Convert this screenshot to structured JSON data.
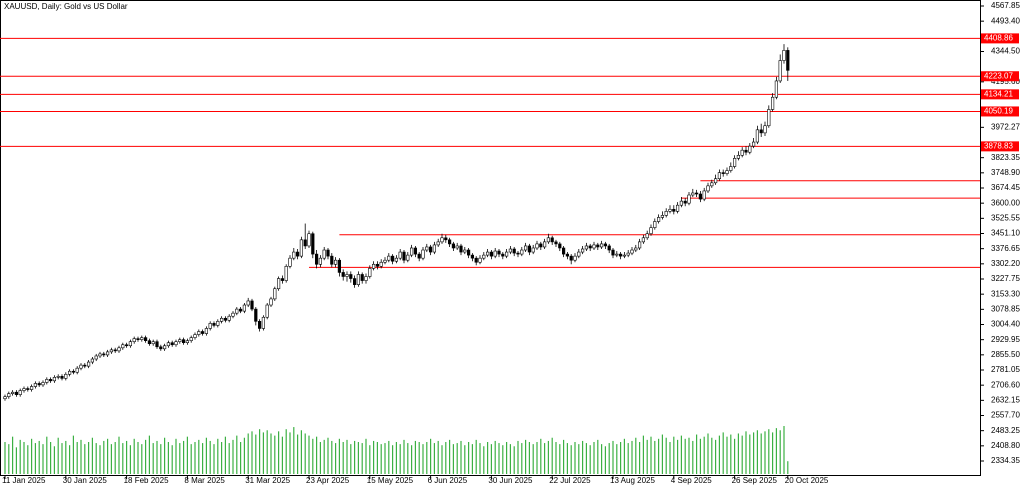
{
  "chart_data": {
    "type": "candlestick",
    "title": "XAUUSD, Daily:  Gold vs US Dollar",
    "ylim": [
      2334.35,
      4567.85
    ],
    "yticks": [
      4567.85,
      {
        "value": 4493.4,
        "label": "4493.40"
      },
      {
        "value": 4344.5,
        "label": "4344.50"
      },
      {
        "value": 4195.6,
        "label": "4195.60"
      },
      3972.27,
      3823.35,
      {
        "value": 3748.9,
        "label": "3748.90"
      },
      3674.45,
      {
        "value": 3600,
        "label": "3600.00"
      },
      3525.55,
      {
        "value": 3451.1,
        "label": "3451.10"
      },
      3376.65,
      {
        "value": 3302.2,
        "label": "3302.20"
      },
      3227.75,
      {
        "value": 3153.3,
        "label": "3153.30"
      },
      3078.85,
      {
        "value": 3004.4,
        "label": "3004.40"
      },
      2929.95,
      {
        "value": 2855.5,
        "label": "2855.50"
      },
      2781.05,
      {
        "value": 2706.6,
        "label": "2706.60"
      },
      2632.15,
      {
        "value": 2557.7,
        "label": "2557.70"
      },
      2483.25,
      {
        "value": 2408.8,
        "label": "2408.80"
      },
      2334.35
    ],
    "xticks": [
      {
        "value": 0,
        "label": "11 Jan 2025"
      },
      {
        "value": 16,
        "label": "30 Jan 2025"
      },
      {
        "value": 32,
        "label": "18 Feb 2025"
      },
      {
        "value": 48,
        "label": "8 Mar 2025"
      },
      {
        "value": 64,
        "label": "31 Mar 2025"
      },
      {
        "value": 80,
        "label": "23 Apr 2025"
      },
      {
        "value": 96,
        "label": "15 May 2025"
      },
      {
        "value": 112,
        "label": "6 Jun 2025"
      },
      {
        "value": 128,
        "label": "30 Jun 2025"
      },
      {
        "value": 144,
        "label": "22 Jul 2025"
      },
      {
        "value": 160,
        "label": "13 Aug 2025"
      },
      {
        "value": 176,
        "label": "4 Sep 2025"
      },
      {
        "value": 192,
        "label": "26 Sep 2025"
      },
      {
        "value": 206,
        "label": "20 Oct 2025"
      }
    ],
    "levels": [
      4408.86,
      4223.07,
      4134.21,
      4050.19,
      3878.83
    ],
    "level_color": "#ff0000",
    "segments": [
      {
        "value": 3445,
        "from": 88
      },
      {
        "value": 3285,
        "from": 80
      },
      {
        "value": 3710,
        "from": 183
      },
      {
        "value": 3625,
        "from": 178
      }
    ],
    "volume_color": "#3cb043",
    "open": [
      2640,
      2650,
      2665,
      2672,
      2660,
      2680,
      2690,
      2685,
      2700,
      2715,
      2708,
      2720,
      2735,
      2728,
      2745,
      2750,
      2740,
      2760,
      2775,
      2770,
      2790,
      2805,
      2800,
      2820,
      2835,
      2850,
      2860,
      2855,
      2870,
      2880,
      2875,
      2890,
      2905,
      2900,
      2920,
      2935,
      2930,
      2940,
      2925,
      2910,
      2920,
      2895,
      2885,
      2900,
      2915,
      2905,
      2920,
      2930,
      2915,
      2925,
      2940,
      2955,
      2970,
      2960,
      2985,
      3010,
      3000,
      3020,
      3035,
      3025,
      3045,
      3060,
      3080,
      3070,
      3100,
      3120,
      3080,
      3020,
      2985,
      3040,
      3100,
      3130,
      3180,
      3230,
      3220,
      3290,
      3330,
      3360,
      3340,
      3420,
      3390,
      3450,
      3350,
      3300,
      3330,
      3370,
      3340,
      3300,
      3320,
      3260,
      3240,
      3250,
      3230,
      3200,
      3250,
      3220,
      3240,
      3280,
      3300,
      3290,
      3310,
      3320,
      3340,
      3315,
      3330,
      3360,
      3320,
      3345,
      3380,
      3350,
      3330,
      3370,
      3385,
      3360,
      3395,
      3410,
      3430,
      3420,
      3400,
      3380,
      3390,
      3360,
      3370,
      3345,
      3330,
      3310,
      3330,
      3345,
      3360,
      3340,
      3365,
      3350,
      3340,
      3360,
      3375,
      3355,
      3350,
      3370,
      3390,
      3360,
      3380,
      3400,
      3385,
      3410,
      3430,
      3410,
      3400,
      3380,
      3350,
      3340,
      3320,
      3340,
      3360,
      3375,
      3390,
      3380,
      3395,
      3385,
      3400,
      3390,
      3370,
      3345,
      3350,
      3340,
      3345,
      3355,
      3370,
      3380,
      3410,
      3430,
      3450,
      3480,
      3510,
      3530,
      3540,
      3560,
      3570,
      3560,
      3590,
      3610,
      3600,
      3640,
      3650,
      3645,
      3620,
      3660,
      3685,
      3700,
      3720,
      3750,
      3745,
      3760,
      3780,
      3820,
      3835,
      3860,
      3850,
      3880,
      3900,
      3960,
      3945,
      3980,
      4060,
      4120,
      4200,
      4300,
      4350
    ],
    "high": [
      2660,
      2675,
      2682,
      2682,
      2690,
      2700,
      2700,
      2710,
      2725,
      2725,
      2730,
      2745,
      2745,
      2755,
      2760,
      2760,
      2770,
      2785,
      2785,
      2800,
      2815,
      2815,
      2830,
      2845,
      2860,
      2870,
      2870,
      2880,
      2890,
      2890,
      2900,
      2915,
      2915,
      2930,
      2945,
      2945,
      2950,
      2950,
      2935,
      2930,
      2930,
      2905,
      2910,
      2925,
      2925,
      2930,
      2940,
      2940,
      2935,
      2950,
      2965,
      2980,
      2980,
      2995,
      3020,
      3020,
      3030,
      3045,
      3045,
      3055,
      3070,
      3090,
      3090,
      3110,
      3135,
      3130,
      3090,
      3030,
      3050,
      3110,
      3140,
      3190,
      3240,
      3245,
      3300,
      3345,
      3380,
      3375,
      3435,
      3500,
      3465,
      3460,
      3370,
      3345,
      3385,
      3380,
      3355,
      3335,
      3330,
      3275,
      3265,
      3265,
      3245,
      3265,
      3260,
      3255,
      3295,
      3315,
      3315,
      3325,
      3335,
      3355,
      3350,
      3345,
      3375,
      3370,
      3360,
      3395,
      3390,
      3360,
      3385,
      3400,
      3395,
      3410,
      3425,
      3450,
      3445,
      3430,
      3410,
      3405,
      3400,
      3385,
      3380,
      3355,
      3340,
      3345,
      3360,
      3375,
      3370,
      3380,
      3375,
      3360,
      3375,
      3390,
      3385,
      3365,
      3385,
      3405,
      3400,
      3395,
      3415,
      3410,
      3425,
      3450,
      3440,
      3420,
      3410,
      3390,
      3360,
      3350,
      3355,
      3375,
      3390,
      3405,
      3400,
      3410,
      3405,
      3415,
      3410,
      3400,
      3380,
      3365,
      3360,
      3360,
      3370,
      3385,
      3395,
      3425,
      3445,
      3465,
      3495,
      3525,
      3545,
      3560,
      3575,
      3590,
      3590,
      3605,
      3630,
      3625,
      3655,
      3670,
      3665,
      3660,
      3675,
      3700,
      3715,
      3740,
      3765,
      3765,
      3775,
      3800,
      3835,
      3855,
      3875,
      3880,
      3895,
      3920,
      3980,
      3990,
      4000,
      4080,
      4140,
      4220,
      4330,
      4381,
      4365
    ],
    "low": [
      2630,
      2640,
      2655,
      2650,
      2650,
      2670,
      2675,
      2675,
      2690,
      2698,
      2698,
      2710,
      2718,
      2718,
      2735,
      2730,
      2730,
      2750,
      2760,
      2760,
      2780,
      2790,
      2790,
      2810,
      2825,
      2840,
      2845,
      2845,
      2860,
      2865,
      2865,
      2880,
      2890,
      2890,
      2910,
      2920,
      2920,
      2915,
      2900,
      2900,
      2885,
      2875,
      2875,
      2890,
      2895,
      2895,
      2910,
      2905,
      2905,
      2915,
      2930,
      2945,
      2950,
      2950,
      2975,
      2990,
      2990,
      3010,
      3015,
      3015,
      3035,
      3050,
      3060,
      3060,
      3090,
      3070,
      3000,
      2970,
      2975,
      3030,
      3090,
      3120,
      3170,
      3205,
      3210,
      3280,
      3320,
      3325,
      3330,
      3375,
      3380,
      3330,
      3280,
      3285,
      3320,
      3325,
      3285,
      3285,
      3240,
      3220,
      3215,
      3210,
      3185,
      3190,
      3205,
      3205,
      3230,
      3270,
      3275,
      3280,
      3300,
      3310,
      3300,
      3305,
      3320,
      3305,
      3310,
      3335,
      3335,
      3315,
      3320,
      3360,
      3345,
      3350,
      3385,
      3400,
      3405,
      3385,
      3365,
      3370,
      3345,
      3350,
      3330,
      3315,
      3295,
      3300,
      3320,
      3335,
      3325,
      3330,
      3335,
      3325,
      3330,
      3350,
      3340,
      3335,
      3340,
      3360,
      3345,
      3350,
      3370,
      3370,
      3375,
      3400,
      3395,
      3385,
      3365,
      3335,
      3325,
      3300,
      3310,
      3330,
      3350,
      3365,
      3365,
      3370,
      3370,
      3375,
      3375,
      3355,
      3330,
      3335,
      3325,
      3330,
      3335,
      3345,
      3360,
      3370,
      3400,
      3420,
      3440,
      3470,
      3500,
      3520,
      3530,
      3550,
      3545,
      3550,
      3580,
      3585,
      3590,
      3630,
      3630,
      3605,
      3610,
      3650,
      3675,
      3690,
      3710,
      3730,
      3735,
      3750,
      3770,
      3810,
      3825,
      3835,
      3840,
      3870,
      3890,
      3925,
      3930,
      3970,
      4050,
      4110,
      4190,
      4285,
      4200
    ],
    "close": [
      2650,
      2665,
      2672,
      2660,
      2680,
      2690,
      2685,
      2700,
      2715,
      2708,
      2720,
      2735,
      2728,
      2745,
      2750,
      2740,
      2760,
      2775,
      2770,
      2790,
      2805,
      2800,
      2820,
      2835,
      2850,
      2860,
      2855,
      2870,
      2880,
      2875,
      2890,
      2905,
      2900,
      2920,
      2935,
      2930,
      2940,
      2925,
      2910,
      2920,
      2895,
      2885,
      2900,
      2915,
      2905,
      2920,
      2930,
      2915,
      2925,
      2940,
      2955,
      2970,
      2960,
      2985,
      3010,
      3000,
      3020,
      3035,
      3025,
      3045,
      3060,
      3080,
      3070,
      3100,
      3120,
      3080,
      3020,
      2985,
      3040,
      3100,
      3130,
      3180,
      3230,
      3220,
      3290,
      3330,
      3360,
      3340,
      3420,
      3390,
      3450,
      3350,
      3300,
      3330,
      3370,
      3340,
      3300,
      3320,
      3260,
      3240,
      3250,
      3230,
      3200,
      3250,
      3220,
      3240,
      3280,
      3300,
      3290,
      3310,
      3320,
      3340,
      3315,
      3330,
      3360,
      3320,
      3345,
      3380,
      3350,
      3330,
      3370,
      3385,
      3360,
      3395,
      3410,
      3430,
      3420,
      3400,
      3380,
      3390,
      3360,
      3370,
      3345,
      3330,
      3310,
      3330,
      3345,
      3360,
      3340,
      3365,
      3350,
      3340,
      3360,
      3375,
      3355,
      3350,
      3370,
      3390,
      3360,
      3380,
      3400,
      3385,
      3410,
      3430,
      3410,
      3400,
      3380,
      3350,
      3340,
      3320,
      3340,
      3360,
      3375,
      3390,
      3380,
      3395,
      3385,
      3400,
      3390,
      3370,
      3345,
      3350,
      3340,
      3345,
      3355,
      3370,
      3380,
      3410,
      3430,
      3450,
      3480,
      3510,
      3530,
      3540,
      3560,
      3570,
      3560,
      3590,
      3610,
      3600,
      3640,
      3650,
      3645,
      3620,
      3660,
      3685,
      3700,
      3720,
      3750,
      3745,
      3760,
      3780,
      3820,
      3835,
      3860,
      3850,
      3880,
      3900,
      3960,
      3945,
      3980,
      4060,
      4120,
      4200,
      4300,
      4350,
      4252
    ],
    "volume": [
      30,
      28,
      35,
      25,
      32,
      30,
      27,
      33,
      29,
      31,
      28,
      35,
      30,
      26,
      34,
      29,
      31,
      27,
      36,
      30,
      32,
      28,
      30,
      34,
      29,
      27,
      31,
      33,
      28,
      30,
      35,
      29,
      31,
      27,
      33,
      30,
      28,
      32,
      36,
      29,
      31,
      28,
      34,
      30,
      27,
      33,
      29,
      31,
      35,
      28,
      30,
      32,
      29,
      34,
      31,
      28,
      33,
      30,
      35,
      29,
      32,
      36,
      30,
      34,
      38,
      40,
      37,
      42,
      39,
      41,
      38,
      36,
      40,
      35,
      42,
      39,
      44,
      37,
      41,
      38,
      36,
      33,
      35,
      30,
      32,
      34,
      31,
      29,
      33,
      30,
      32,
      28,
      31,
      30,
      29,
      33,
      27,
      31,
      30,
      28,
      29,
      31,
      27,
      30,
      28,
      32,
      29,
      27,
      31,
      30,
      28,
      30,
      33,
      29,
      31,
      27,
      30,
      32,
      28,
      29,
      31,
      27,
      30,
      28,
      32,
      29,
      26,
      30,
      28,
      31,
      29,
      27,
      30,
      28,
      26,
      31,
      29,
      32,
      30,
      28,
      30,
      33,
      29,
      31,
      34,
      30,
      28,
      32,
      29,
      27,
      30,
      28,
      31,
      29,
      27,
      30,
      32,
      28,
      26,
      29,
      31,
      28,
      30,
      33,
      29,
      31,
      34,
      30,
      36,
      32,
      35,
      31,
      33,
      37,
      34,
      30,
      35,
      32,
      36,
      33,
      34,
      31,
      37,
      33,
      35,
      38,
      34,
      32,
      36,
      39,
      35,
      37,
      33,
      38,
      36,
      40,
      37,
      39,
      41,
      38,
      40,
      42,
      39,
      43,
      41,
      45,
      12
    ]
  }
}
